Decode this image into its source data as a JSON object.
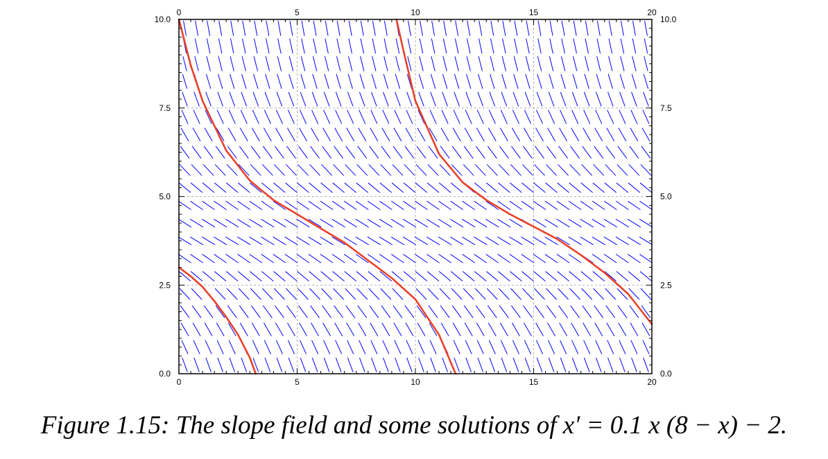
{
  "caption": "Figure 1.15: The slope field and some solutions of x′ = 0.1 x (8 − x) − 2.",
  "colors": {
    "slope": "#0000ff",
    "solution": "#e8402a",
    "grid": "#b0b0b0",
    "axis": "#000000"
  },
  "chart_data": {
    "type": "line",
    "equation": "x' = 0.1 x (8 - x) - 2",
    "xlim": [
      0,
      20
    ],
    "ylim": [
      0,
      10
    ],
    "x_ticks": [
      "0",
      "5",
      "10",
      "15",
      "20"
    ],
    "y_ticks": [
      "0.0",
      "2.5",
      "5.0",
      "7.5",
      "10.0"
    ],
    "grid": true,
    "slope_field": {
      "x_step": 0.5,
      "y_step": 0.5
    },
    "series": [
      {
        "x": [
          0,
          0.5,
          1,
          2,
          3,
          4,
          5,
          6,
          7,
          8,
          9,
          10,
          11,
          11.7
        ],
        "values": [
          10,
          8.7,
          7.7,
          6.3,
          5.45,
          4.9,
          4.5,
          4.1,
          3.7,
          3.2,
          2.7,
          2.1,
          1.1,
          0
        ]
      },
      {
        "x": [
          0,
          0.5,
          1,
          1.5,
          2,
          2.5,
          3,
          3.25
        ],
        "values": [
          3,
          2.75,
          2.45,
          2.05,
          1.6,
          1.1,
          0.45,
          0
        ]
      },
      {
        "x": [
          9.2,
          9.5,
          10,
          11,
          12,
          13,
          14,
          15,
          16,
          17,
          18,
          19,
          20
        ],
        "values": [
          10,
          9.1,
          7.7,
          6.2,
          5.4,
          4.9,
          4.5,
          4.15,
          3.8,
          3.35,
          2.85,
          2.25,
          1.4
        ]
      }
    ]
  }
}
